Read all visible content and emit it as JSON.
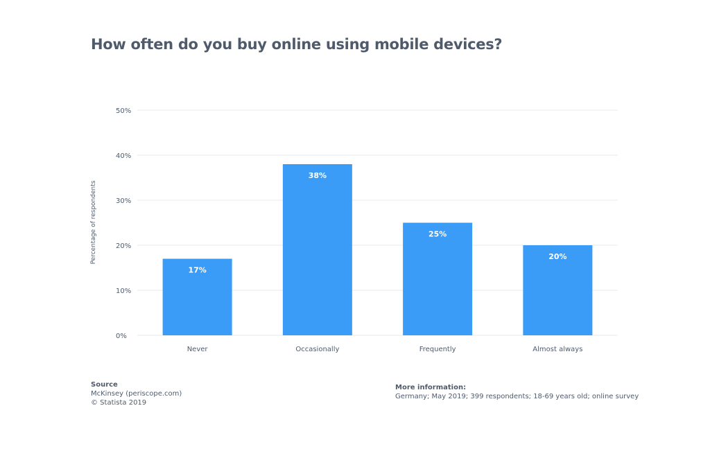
{
  "chart_data": {
    "type": "bar",
    "title": "How often do you buy online using mobile devices?",
    "ylabel": "Percentage of respondents",
    "xlabel": "",
    "categories": [
      "Never",
      "Occasionally",
      "Frequently",
      "Almost always"
    ],
    "values": [
      17,
      38,
      25,
      20
    ],
    "data_labels": [
      "17%",
      "38%",
      "25%",
      "20%"
    ],
    "ylim": [
      0,
      50
    ],
    "yticks": [
      0,
      10,
      20,
      30,
      40,
      50
    ],
    "ytick_labels": [
      "0%",
      "10%",
      "20%",
      "30%",
      "40%",
      "50%"
    ],
    "grid": true,
    "legend": "none",
    "bar_color": "#3a9cf7"
  },
  "footer": {
    "source_heading": "Source",
    "source_lines": [
      "McKinsey (periscope.com)",
      "© Statista 2019"
    ],
    "info_heading": "More information:",
    "info_text": "Germany; May 2019; 399 respondents; 18-69 years old; online survey"
  }
}
